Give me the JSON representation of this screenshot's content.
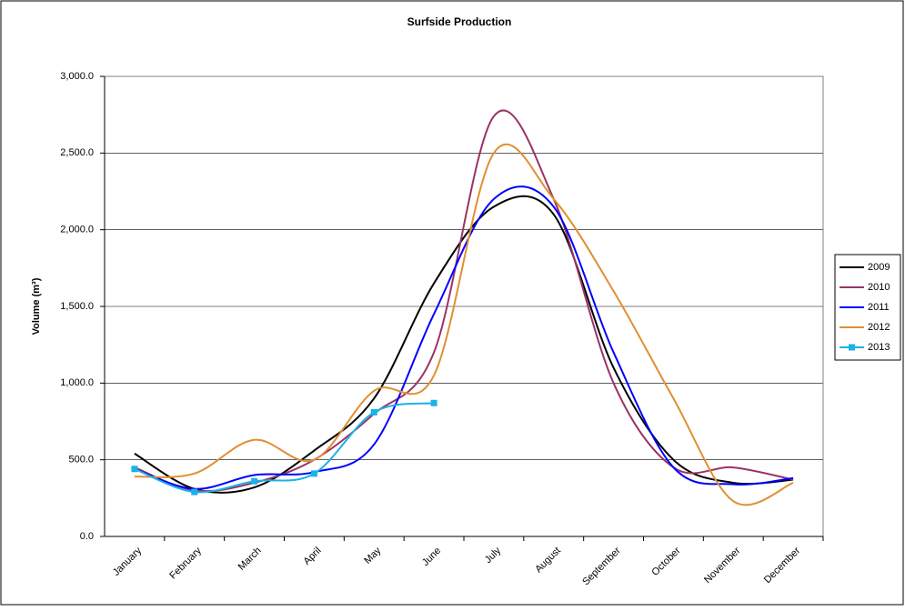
{
  "chart_data": {
    "type": "line",
    "title": "Surfside Production",
    "y_label": "Volume (m³)",
    "categories": [
      "January",
      "February",
      "March",
      "April",
      "May",
      "June",
      "July",
      "August",
      "September",
      "October",
      "November",
      "December"
    ],
    "series": [
      {
        "name": "2009",
        "color": "#000000",
        "values": [
          540,
          310,
          320,
          560,
          900,
          1650,
          2150,
          2100,
          1100,
          500,
          350,
          370
        ]
      },
      {
        "name": "2010",
        "color": "#993366",
        "values": [
          450,
          300,
          350,
          500,
          800,
          1200,
          2740,
          2200,
          1000,
          450,
          450,
          370
        ]
      },
      {
        "name": "2011",
        "color": "#0000ff",
        "values": [
          440,
          310,
          400,
          420,
          600,
          1450,
          2200,
          2150,
          1200,
          450,
          340,
          380
        ]
      },
      {
        "name": "2012",
        "color": "#e08f32",
        "values": [
          390,
          410,
          630,
          500,
          950,
          1050,
          2500,
          2200,
          1600,
          900,
          230,
          350
        ]
      },
      {
        "name": "2013",
        "color": "#1ab2e8",
        "values": [
          440,
          290,
          360,
          410,
          810,
          870,
          null,
          null,
          null,
          null,
          null,
          null
        ],
        "markers": true
      }
    ],
    "ylim": [
      0,
      3000
    ],
    "yticks": [
      {
        "value": 0,
        "label": "0.0"
      },
      {
        "value": 500,
        "label": "500.0"
      },
      {
        "value": 1000,
        "label": "1,000.0"
      },
      {
        "value": 1500,
        "label": "1,500.0"
      },
      {
        "value": 2000,
        "label": "2,000.0"
      },
      {
        "value": 2500,
        "label": "2,500.0"
      },
      {
        "value": 3000,
        "label": "3,000.0"
      }
    ],
    "grid": true,
    "smooth": true,
    "legend": "right"
  }
}
